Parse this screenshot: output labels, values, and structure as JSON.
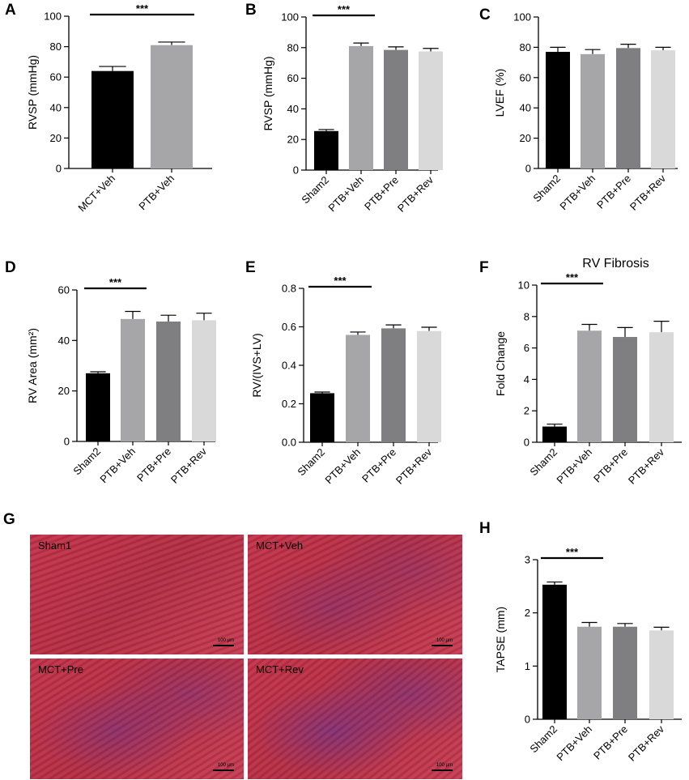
{
  "figure": {
    "panels": [
      "A",
      "B",
      "C",
      "D",
      "E",
      "F",
      "G",
      "H"
    ]
  },
  "colors": {
    "black": "#000000",
    "grey_light": "#a6a6a8",
    "grey_dark": "#7f7f81",
    "grey_pale": "#d9d9d9"
  },
  "chart_data": [
    {
      "panel": "A",
      "type": "bar",
      "categories": [
        "MCT+Veh",
        "PTB+Veh"
      ],
      "values": [
        64,
        81
      ],
      "errors": [
        3,
        2
      ],
      "colors": [
        "#000000",
        "#a6a6a8"
      ],
      "ylabel": "RVSP (mmHg)",
      "title": "",
      "ylim": [
        0,
        100
      ],
      "yticks": [
        "0",
        "20",
        "40",
        "60",
        "80",
        "100"
      ],
      "significance": [
        {
          "from": 0,
          "to": 1,
          "label": "***"
        }
      ]
    },
    {
      "panel": "B",
      "type": "bar",
      "categories": [
        "Sham2",
        "PTB+Veh",
        "PTB+Pre",
        "PTB+Rev"
      ],
      "values": [
        25.5,
        81,
        78.5,
        77.5
      ],
      "errors": [
        1,
        2,
        2,
        2
      ],
      "colors": [
        "#000000",
        "#a6a6a8",
        "#7f7f81",
        "#d9d9d9"
      ],
      "ylabel": "RVSP (mmHg)",
      "title": "",
      "ylim": [
        0,
        100
      ],
      "yticks": [
        "0",
        "20",
        "40",
        "60",
        "80",
        "100"
      ],
      "significance": [
        {
          "from": 0,
          "to": 1,
          "label": "***"
        }
      ]
    },
    {
      "panel": "C",
      "type": "bar",
      "categories": [
        "Sham2",
        "PTB+Veh",
        "PTB+Pre",
        "PTB+Rev"
      ],
      "values": [
        77,
        75.5,
        79.5,
        78
      ],
      "errors": [
        3,
        3,
        2.5,
        2
      ],
      "colors": [
        "#000000",
        "#a6a6a8",
        "#7f7f81",
        "#d9d9d9"
      ],
      "ylabel": "LVEF (%)",
      "title": "",
      "ylim": [
        0,
        100
      ],
      "yticks": [
        "0",
        "20",
        "40",
        "60",
        "80",
        "100"
      ],
      "significance": []
    },
    {
      "panel": "D",
      "type": "bar",
      "categories": [
        "Sham2",
        "PTB+Veh",
        "PTB+Pre",
        "PTB+Rev"
      ],
      "values": [
        27,
        48.5,
        47.5,
        48
      ],
      "errors": [
        0.6,
        3,
        2.5,
        2.8
      ],
      "colors": [
        "#000000",
        "#a6a6a8",
        "#7f7f81",
        "#d9d9d9"
      ],
      "ylabel": "RV Area (mm²)",
      "title": "",
      "ylim": [
        0,
        60
      ],
      "yticks": [
        "0",
        "20",
        "40",
        "60"
      ],
      "significance": [
        {
          "from": 0,
          "to": 1,
          "label": "***"
        }
      ]
    },
    {
      "panel": "E",
      "type": "bar",
      "categories": [
        "Sham2",
        "PTB+Veh",
        "PTB+Pre",
        "PTB+Rev"
      ],
      "values": [
        0.255,
        0.558,
        0.592,
        0.578
      ],
      "errors": [
        0.006,
        0.015,
        0.018,
        0.02
      ],
      "colors": [
        "#000000",
        "#a6a6a8",
        "#7f7f81",
        "#d9d9d9"
      ],
      "ylabel": "RV/(IVS+LV)",
      "title": "",
      "ylim": [
        0,
        0.8
      ],
      "yticks": [
        "0.0",
        "0.2",
        "0.4",
        "0.6",
        "0.8"
      ],
      "significance": [
        {
          "from": 0,
          "to": 1,
          "label": "***"
        }
      ]
    },
    {
      "panel": "F",
      "type": "bar",
      "categories": [
        "Sham2",
        "PTB+Veh",
        "PTB+Pre",
        "PTB+Rev"
      ],
      "values": [
        1,
        7.1,
        6.7,
        7
      ],
      "errors": [
        0.15,
        0.4,
        0.6,
        0.7
      ],
      "colors": [
        "#000000",
        "#a6a6a8",
        "#7f7f81",
        "#d9d9d9"
      ],
      "ylabel": "Fold Change",
      "title": "RV Fibrosis",
      "ylim": [
        0,
        10
      ],
      "yticks": [
        "0",
        "2",
        "4",
        "6",
        "8",
        "10"
      ],
      "significance": [
        {
          "from": 0,
          "to": 1,
          "label": "***"
        }
      ]
    },
    {
      "panel": "H",
      "type": "bar",
      "categories": [
        "Sham2",
        "PTB+Veh",
        "PTB+Pre",
        "PTB+Rev"
      ],
      "values": [
        2.53,
        1.74,
        1.74,
        1.67
      ],
      "errors": [
        0.05,
        0.08,
        0.06,
        0.06
      ],
      "colors": [
        "#000000",
        "#a6a6a8",
        "#7f7f81",
        "#d9d9d9"
      ],
      "ylabel": "TAPSE (mm)",
      "title": "",
      "ylim": [
        0,
        3
      ],
      "yticks": [
        "0",
        "1",
        "2",
        "3"
      ],
      "significance": [
        {
          "from": 0,
          "to": 1,
          "label": "***"
        }
      ]
    }
  ],
  "histology": {
    "panel": "G",
    "images": [
      {
        "label": "Sham1",
        "scale": "100 µm"
      },
      {
        "label": "MCT+Veh",
        "scale": "100 µm"
      },
      {
        "label": "MCT+Pre",
        "scale": "100 µm"
      },
      {
        "label": "MCT+Rev",
        "scale": "100 µm"
      }
    ]
  }
}
